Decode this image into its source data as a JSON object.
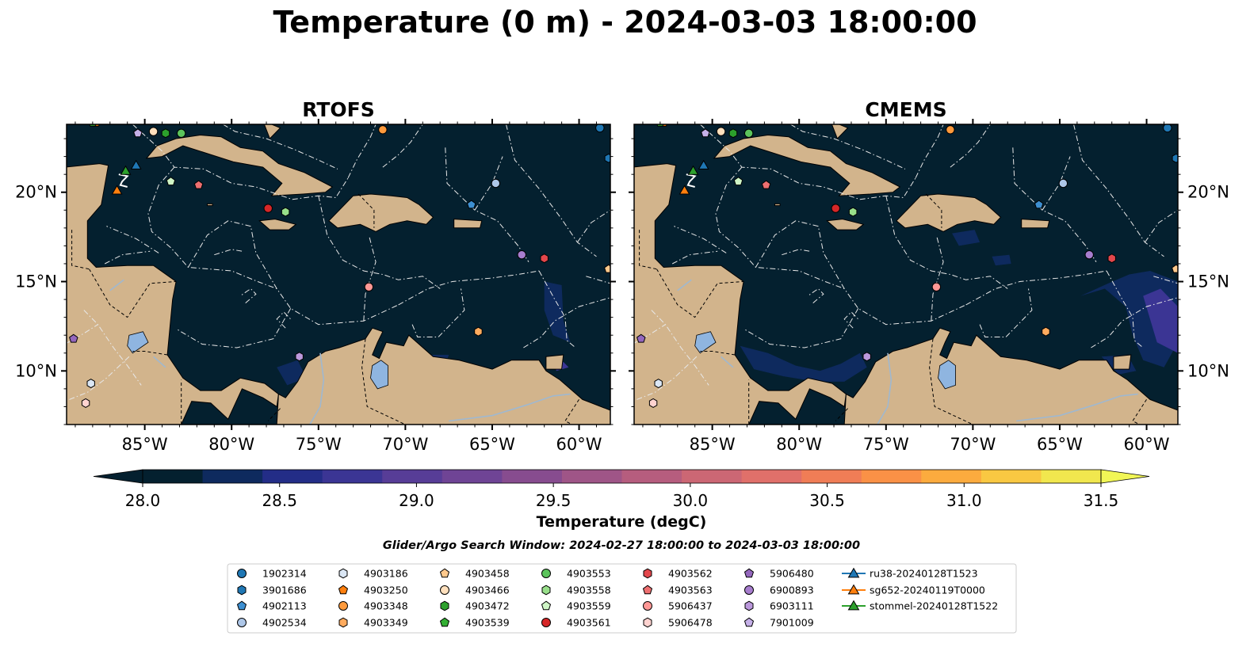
{
  "title": "Temperature (0 m) - 2024-03-03 18:00:00",
  "panels": [
    {
      "title": "RTOFS",
      "warm_pool": "sw"
    },
    {
      "title": "CMEMS",
      "warm_pool": "sw-strong"
    }
  ],
  "map": {
    "lon_range": [
      -89.5,
      -58.2
    ],
    "lat_range": [
      7.0,
      23.8
    ],
    "lon_ticks": [
      {
        "value": -85,
        "label": "85°W"
      },
      {
        "value": -80,
        "label": "80°W"
      },
      {
        "value": -75,
        "label": "75°W"
      },
      {
        "value": -70,
        "label": "70°W"
      },
      {
        "value": -65,
        "label": "65°W"
      },
      {
        "value": -60,
        "label": "60°W"
      }
    ],
    "lat_ticks": [
      {
        "value": 20,
        "label": "20°N"
      },
      {
        "value": 15,
        "label": "15°N"
      },
      {
        "value": 10,
        "label": "10°N"
      }
    ],
    "ocean_color": "#04202f",
    "land_color": "#d2b48c",
    "lake_color": "#8fb5e0",
    "eez_line_color": "#e8e8e8",
    "border_line_color": "#000000"
  },
  "colorbar": {
    "min": 28.0,
    "max": 31.5,
    "step": 0.25,
    "tick_labels": [
      "28.0",
      "28.5",
      "29.0",
      "29.5",
      "30.0",
      "30.5",
      "31.0",
      "31.5"
    ],
    "tick_values": [
      28.0,
      28.5,
      29.0,
      29.5,
      30.0,
      30.5,
      31.0,
      31.5
    ],
    "label": "Temperature (degC)",
    "colors": [
      "#04202f",
      "#0e2a5e",
      "#232d87",
      "#3b3594",
      "#573d97",
      "#6f4495",
      "#874c8f",
      "#9f5587",
      "#b65d7e",
      "#cc6774",
      "#e0706a",
      "#f07d56",
      "#fa9146",
      "#fcab3e",
      "#f9c842",
      "#f1e74e"
    ],
    "extend_low_color": "#04202f",
    "extend_high_color": "#f1f656"
  },
  "search_window": "Glider/Argo Search Window: 2024-02-27 18:00:00 to 2024-03-03 18:00:00",
  "legend": [
    {
      "label": "1902314",
      "marker": "circle",
      "color": "#1f77b4"
    },
    {
      "label": "3901686",
      "marker": "hexagon",
      "color": "#1f77b4"
    },
    {
      "label": "4902113",
      "marker": "pentagon",
      "color": "#3d8fd1"
    },
    {
      "label": "4902534",
      "marker": "circle",
      "color": "#aec7e8"
    },
    {
      "label": "4903186",
      "marker": "hexagon",
      "color": "#dbe7f5"
    },
    {
      "label": "4903250",
      "marker": "pentagon",
      "color": "#ff7f0e"
    },
    {
      "label": "4903348",
      "marker": "circle",
      "color": "#ff9a3c"
    },
    {
      "label": "4903349",
      "marker": "hexagon",
      "color": "#ffab5e"
    },
    {
      "label": "4903458",
      "marker": "pentagon",
      "color": "#ffc98d"
    },
    {
      "label": "4903466",
      "marker": "circle",
      "color": "#ffe0bd"
    },
    {
      "label": "4903472",
      "marker": "hexagon",
      "color": "#2ca02c"
    },
    {
      "label": "4903539",
      "marker": "pentagon",
      "color": "#33b033"
    },
    {
      "label": "4903553",
      "marker": "circle",
      "color": "#5cc45c"
    },
    {
      "label": "4903558",
      "marker": "hexagon",
      "color": "#98df8a"
    },
    {
      "label": "4903559",
      "marker": "pentagon",
      "color": "#cff5c6"
    },
    {
      "label": "4903561",
      "marker": "circle",
      "color": "#d62728"
    },
    {
      "label": "4903562",
      "marker": "hexagon",
      "color": "#e3474c"
    },
    {
      "label": "4903563",
      "marker": "pentagon",
      "color": "#ee6f70"
    },
    {
      "label": "5906437",
      "marker": "circle",
      "color": "#ff9896"
    },
    {
      "label": "5906478",
      "marker": "hexagon",
      "color": "#ffd3d0"
    },
    {
      "label": "5906480",
      "marker": "pentagon",
      "color": "#9467bd"
    },
    {
      "label": "6900893",
      "marker": "circle",
      "color": "#a77dce"
    },
    {
      "label": "6903111",
      "marker": "hexagon",
      "color": "#bb98dc"
    },
    {
      "label": "7901009",
      "marker": "pentagon",
      "color": "#c5b0e8"
    },
    {
      "label": "ru38-20240128T1523",
      "marker": "triangle-line",
      "color": "#1f77b4"
    },
    {
      "label": "sg652-20240119T0000",
      "marker": "triangle-line",
      "color": "#ff7f0e"
    },
    {
      "label": "stommel-20240128T1522",
      "marker": "triangle-line",
      "color": "#2ca02c"
    }
  ],
  "floats": [
    {
      "id": "1902314",
      "lon": -58.8,
      "lat": 23.6
    },
    {
      "id": "3901686",
      "lon": -58.3,
      "lat": 21.9
    },
    {
      "id": "4902113",
      "lon": -66.2,
      "lat": 19.3
    },
    {
      "id": "4902534",
      "lon": -64.8,
      "lat": 20.5
    },
    {
      "id": "4903186",
      "lon": -88.1,
      "lat": 9.3
    },
    {
      "id": "4903250",
      "lon": -87.8,
      "lat": 23.9
    },
    {
      "id": "4903348",
      "lon": -71.3,
      "lat": 23.5
    },
    {
      "id": "4903349",
      "lon": -65.8,
      "lat": 12.2
    },
    {
      "id": "4903458",
      "lon": -58.3,
      "lat": 15.7
    },
    {
      "id": "4903466",
      "lon": -84.5,
      "lat": 23.4
    },
    {
      "id": "4903472",
      "lon": -83.8,
      "lat": 23.3
    },
    {
      "id": "4903539",
      "lon": -88.0,
      "lat": 23.9
    },
    {
      "id": "4903553",
      "lon": -82.9,
      "lat": 23.3
    },
    {
      "id": "4903558",
      "lon": -76.9,
      "lat": 18.9
    },
    {
      "id": "4903559",
      "lon": -83.5,
      "lat": 20.6
    },
    {
      "id": "4903561",
      "lon": -77.9,
      "lat": 19.1
    },
    {
      "id": "4903562",
      "lon": -62.0,
      "lat": 16.3
    },
    {
      "id": "4903563",
      "lon": -81.9,
      "lat": 20.4
    },
    {
      "id": "5906437",
      "lon": -72.1,
      "lat": 14.7
    },
    {
      "id": "5906478",
      "lon": -88.4,
      "lat": 8.2
    },
    {
      "id": "5906480",
      "lon": -89.1,
      "lat": 11.8
    },
    {
      "id": "6900893",
      "lon": -63.3,
      "lat": 16.5
    },
    {
      "id": "6903111",
      "lon": -76.1,
      "lat": 10.8
    },
    {
      "id": "7901009",
      "lon": -85.4,
      "lat": 23.3
    }
  ],
  "gliders": [
    {
      "id": "ru38-20240128T1523",
      "lon": -85.5,
      "lat": 21.5
    },
    {
      "id": "sg652-20240119T0000",
      "lon": -86.6,
      "lat": 20.1
    },
    {
      "id": "stommel-20240128T1522",
      "lon": -86.1,
      "lat": 21.2
    }
  ]
}
